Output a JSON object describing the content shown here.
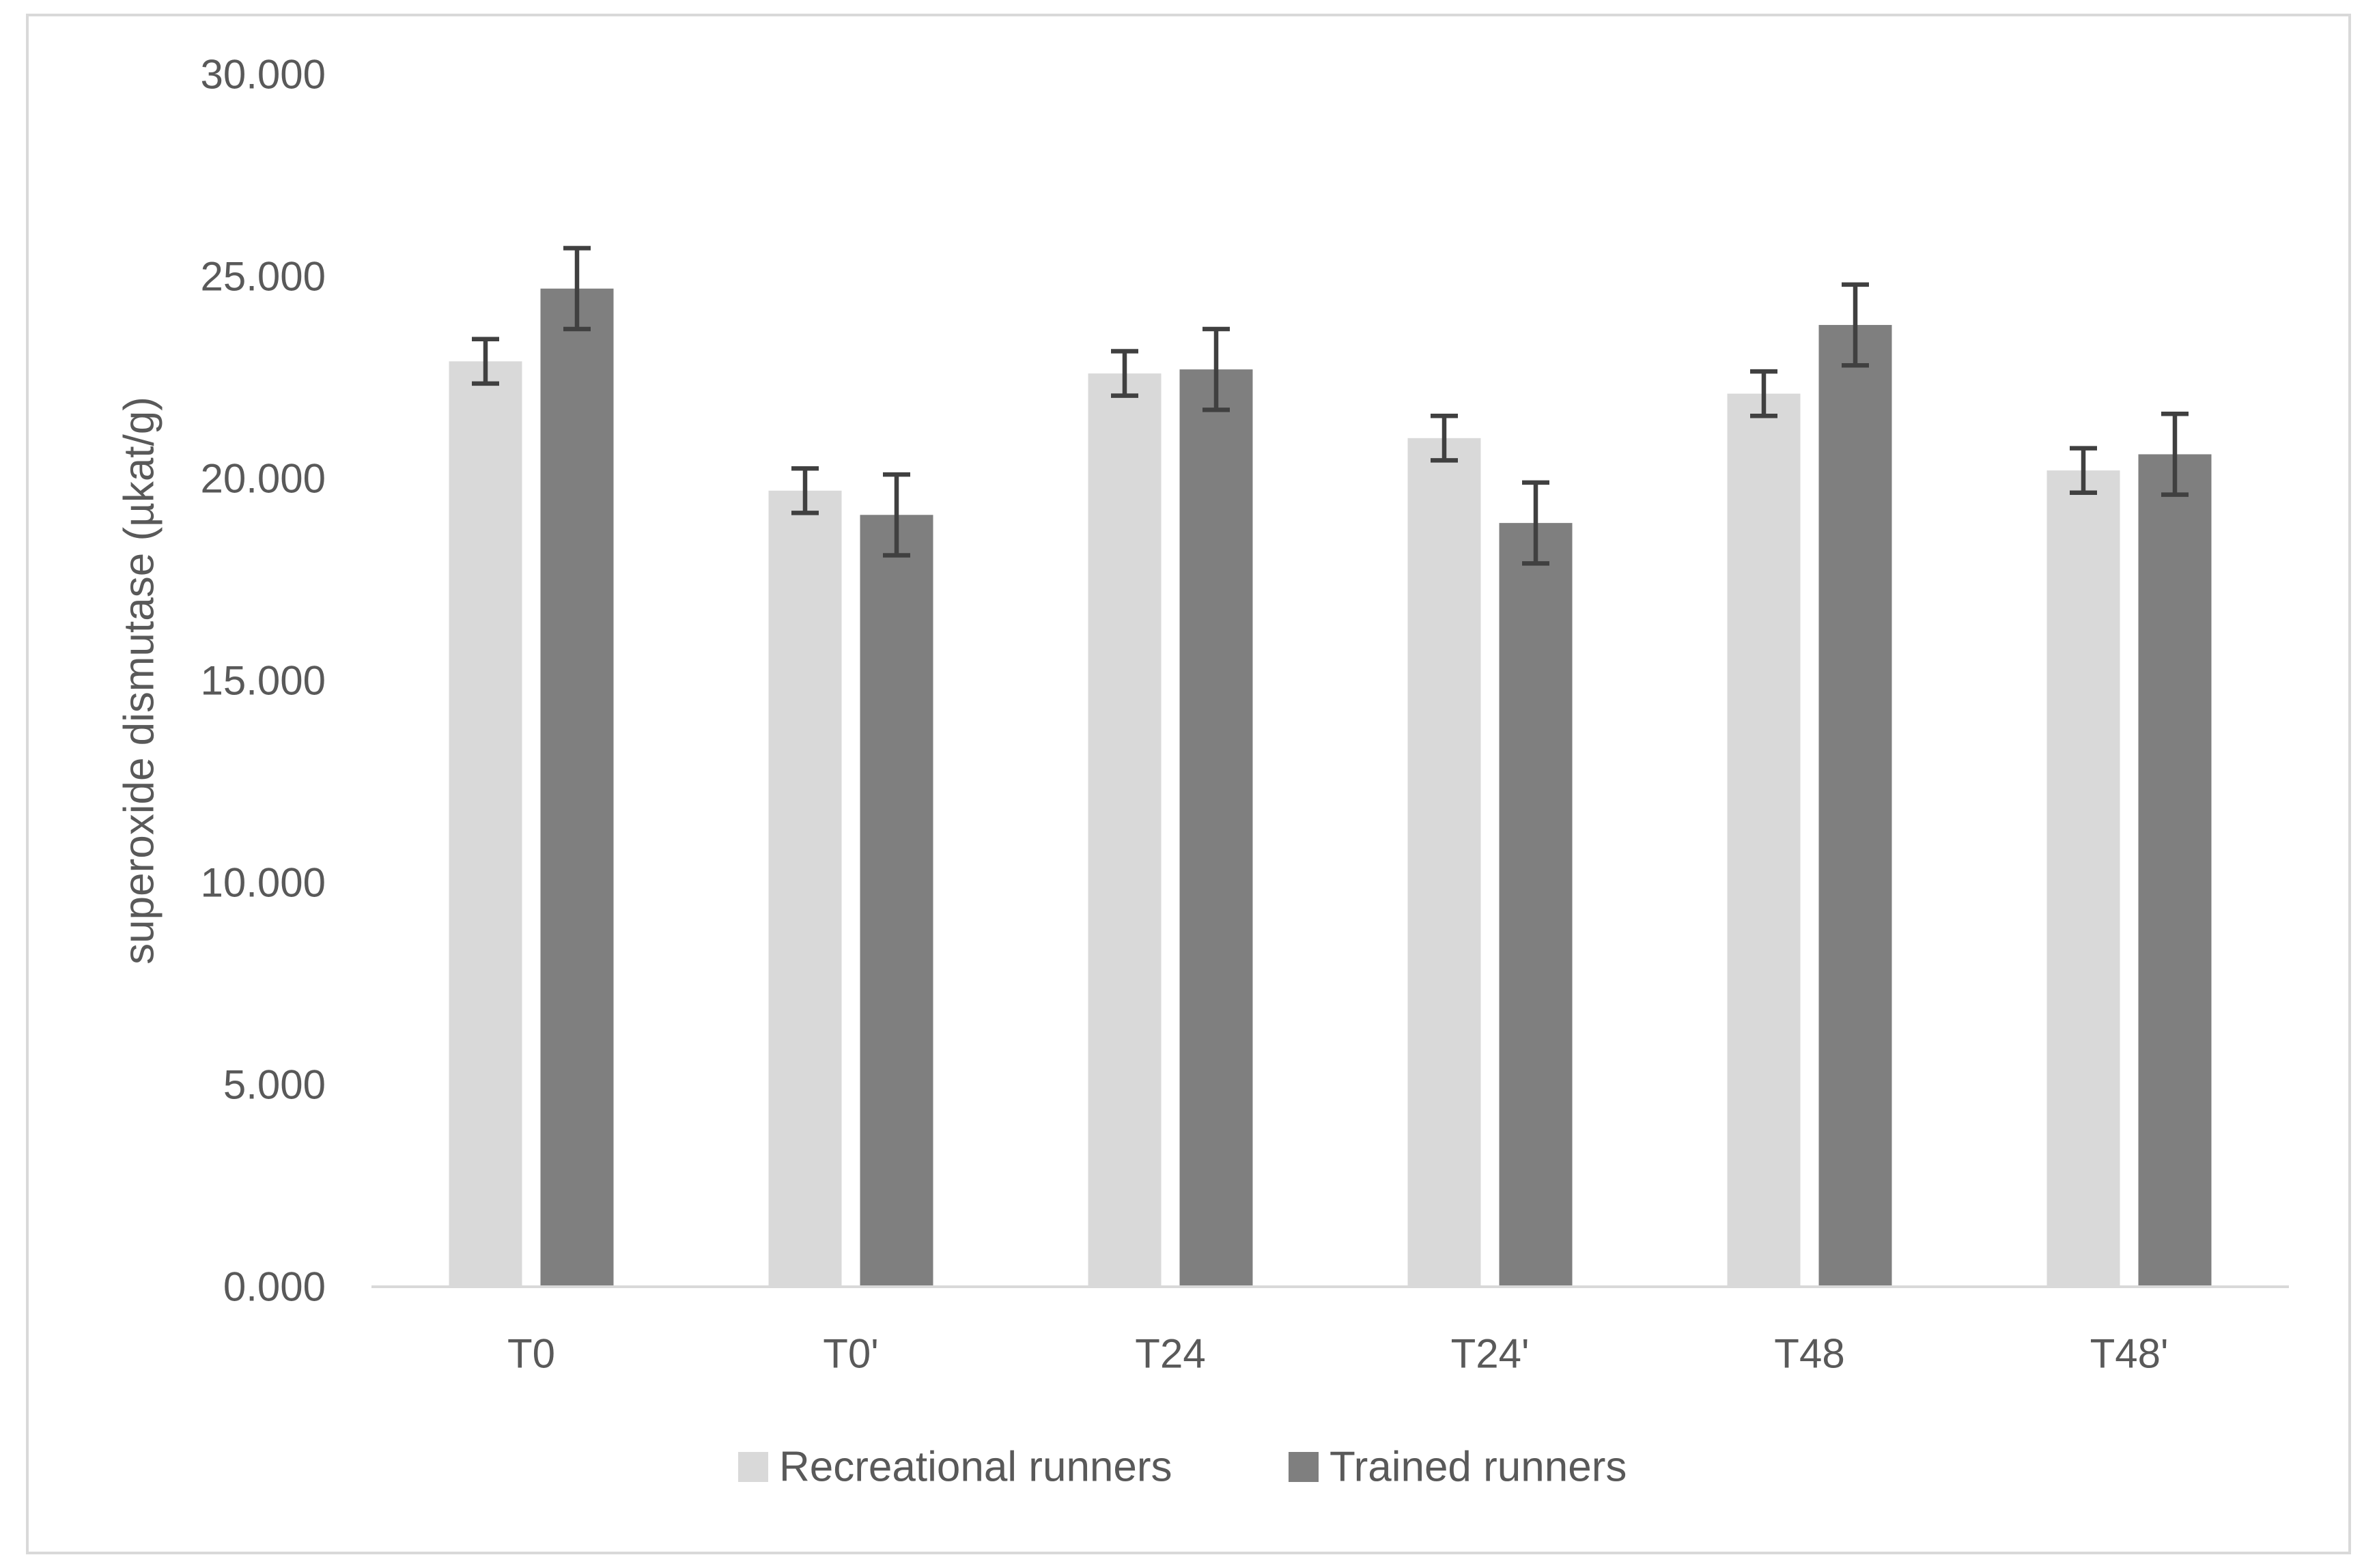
{
  "chart_data": {
    "type": "bar",
    "categories": [
      "T0",
      "T0'",
      "T24",
      "T24'",
      "T48",
      "T48'"
    ],
    "series": [
      {
        "name": "Recreational runners",
        "color": "#D9D9D9",
        "values": [
          22.9,
          19.7,
          22.6,
          21.0,
          22.1,
          20.2
        ],
        "errors": [
          0.55,
          0.55,
          0.55,
          0.55,
          0.55,
          0.55
        ]
      },
      {
        "name": "Trained runners",
        "color": "#7F7F7F",
        "values": [
          24.7,
          19.1,
          22.7,
          18.9,
          23.8,
          20.6
        ],
        "errors": [
          1.0,
          1.0,
          1.0,
          1.0,
          1.0,
          1.0
        ]
      }
    ],
    "ylabel": "superoxide dismutase (µkat/g)",
    "ylim": [
      0,
      30
    ],
    "yticks": [
      "0.000",
      "5.000",
      "10.000",
      "15.000",
      "20.000",
      "25.000",
      "30.000"
    ],
    "grid": false,
    "legend_position": "bottom",
    "error_bar_color": "#404040",
    "axis_line_color": "#D9D9D9",
    "text_color": "#595959"
  }
}
